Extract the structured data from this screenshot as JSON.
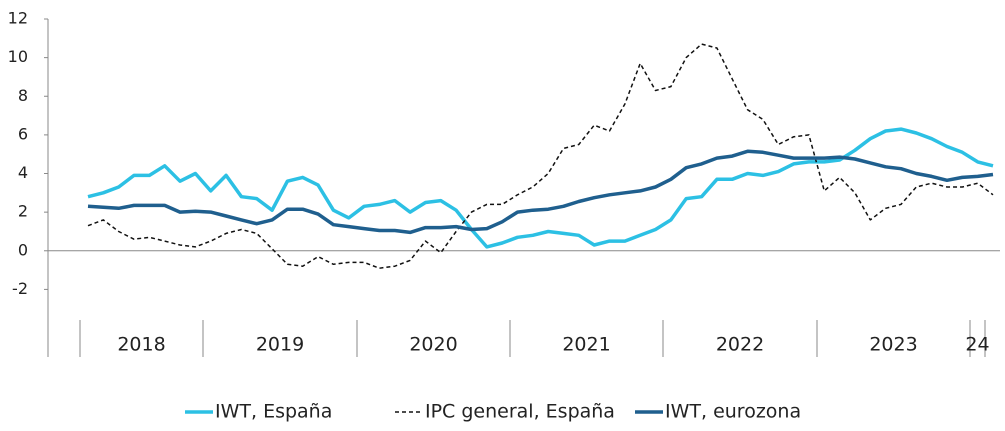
{
  "chart_data": {
    "type": "line",
    "categories": [
      null,
      null,
      null,
      null,
      null,
      null,
      null,
      null,
      null,
      null,
      null,
      null,
      null,
      null,
      null,
      null,
      null,
      null,
      null,
      null,
      null,
      null,
      null,
      null,
      null,
      null,
      null,
      null,
      null,
      null,
      null,
      null,
      null,
      null,
      null,
      null,
      null,
      null,
      null,
      null,
      null,
      null,
      null,
      null,
      null,
      null,
      null,
      null,
      null,
      null,
      null,
      null,
      null,
      null,
      null,
      null,
      null,
      null,
      null,
      null
    ],
    "year_labels": [
      "2018",
      "2019",
      "2020",
      "2021",
      "2022",
      "2023",
      "24"
    ],
    "ylim": [
      -5.5,
      12
    ],
    "yticks": [
      -2,
      0,
      2,
      4,
      6,
      8,
      10,
      12
    ],
    "legend": "bottom",
    "series": [
      {
        "name": "IWT, España",
        "color": "#2cc0e4",
        "style": "solid",
        "values": [
          2.8,
          3.0,
          3.3,
          3.9,
          3.9,
          4.4,
          3.6,
          4.0,
          3.1,
          3.9,
          2.8,
          2.7,
          2.1,
          3.6,
          3.8,
          3.4,
          2.1,
          1.7,
          2.3,
          2.4,
          2.6,
          2.0,
          2.5,
          2.6,
          2.1,
          1.1,
          0.2,
          0.4,
          0.7,
          0.8,
          1.0,
          0.9,
          0.8,
          0.3,
          0.5,
          0.5,
          0.8,
          1.1,
          1.6,
          2.7,
          2.8,
          3.7,
          3.7,
          4.0,
          3.9,
          4.1,
          4.5,
          4.6,
          4.6,
          4.7,
          5.2,
          5.8,
          6.2,
          6.3,
          6.1,
          5.8,
          5.4,
          5.1,
          4.6,
          4.4
        ]
      },
      {
        "name": "IPC general, España",
        "color": "#111111",
        "style": "dashed",
        "values": [
          1.3,
          1.6,
          1.0,
          0.6,
          0.7,
          0.5,
          0.3,
          0.2,
          0.5,
          0.9,
          1.1,
          0.9,
          0.1,
          -0.7,
          -0.8,
          -0.3,
          -0.7,
          -0.6,
          -0.6,
          -0.9,
          -0.8,
          -0.5,
          0.5,
          -0.1,
          1.0,
          2.0,
          2.4,
          2.4,
          2.9,
          3.3,
          4.0,
          5.3,
          5.5,
          6.5,
          6.2,
          7.6,
          9.7,
          8.3,
          8.5,
          10.0,
          10.7,
          10.5,
          8.9,
          7.3,
          6.8,
          5.5,
          5.9,
          6.0,
          3.1,
          3.8,
          3.0,
          1.6,
          2.2,
          2.4,
          3.3,
          3.5,
          3.3,
          3.3,
          3.5,
          2.9
        ]
      },
      {
        "name": "IWT, eurozona",
        "color": "#1f5f8e",
        "style": "solid",
        "values": [
          2.3,
          2.25,
          2.2,
          2.35,
          2.35,
          2.35,
          2.0,
          2.05,
          2.0,
          1.8,
          1.6,
          1.4,
          1.6,
          2.15,
          2.15,
          1.9,
          1.35,
          1.25,
          1.15,
          1.05,
          1.05,
          0.95,
          1.2,
          1.2,
          1.25,
          1.1,
          1.15,
          1.5,
          2.0,
          2.1,
          2.15,
          2.3,
          2.55,
          2.75,
          2.9,
          3.0,
          3.1,
          3.3,
          3.7,
          4.3,
          4.5,
          4.8,
          4.9,
          5.15,
          5.1,
          4.95,
          4.8,
          4.8,
          4.8,
          4.85,
          4.75,
          4.55,
          4.35,
          4.25,
          4.0,
          3.85,
          3.65,
          3.8,
          3.85,
          3.95
        ]
      }
    ]
  }
}
